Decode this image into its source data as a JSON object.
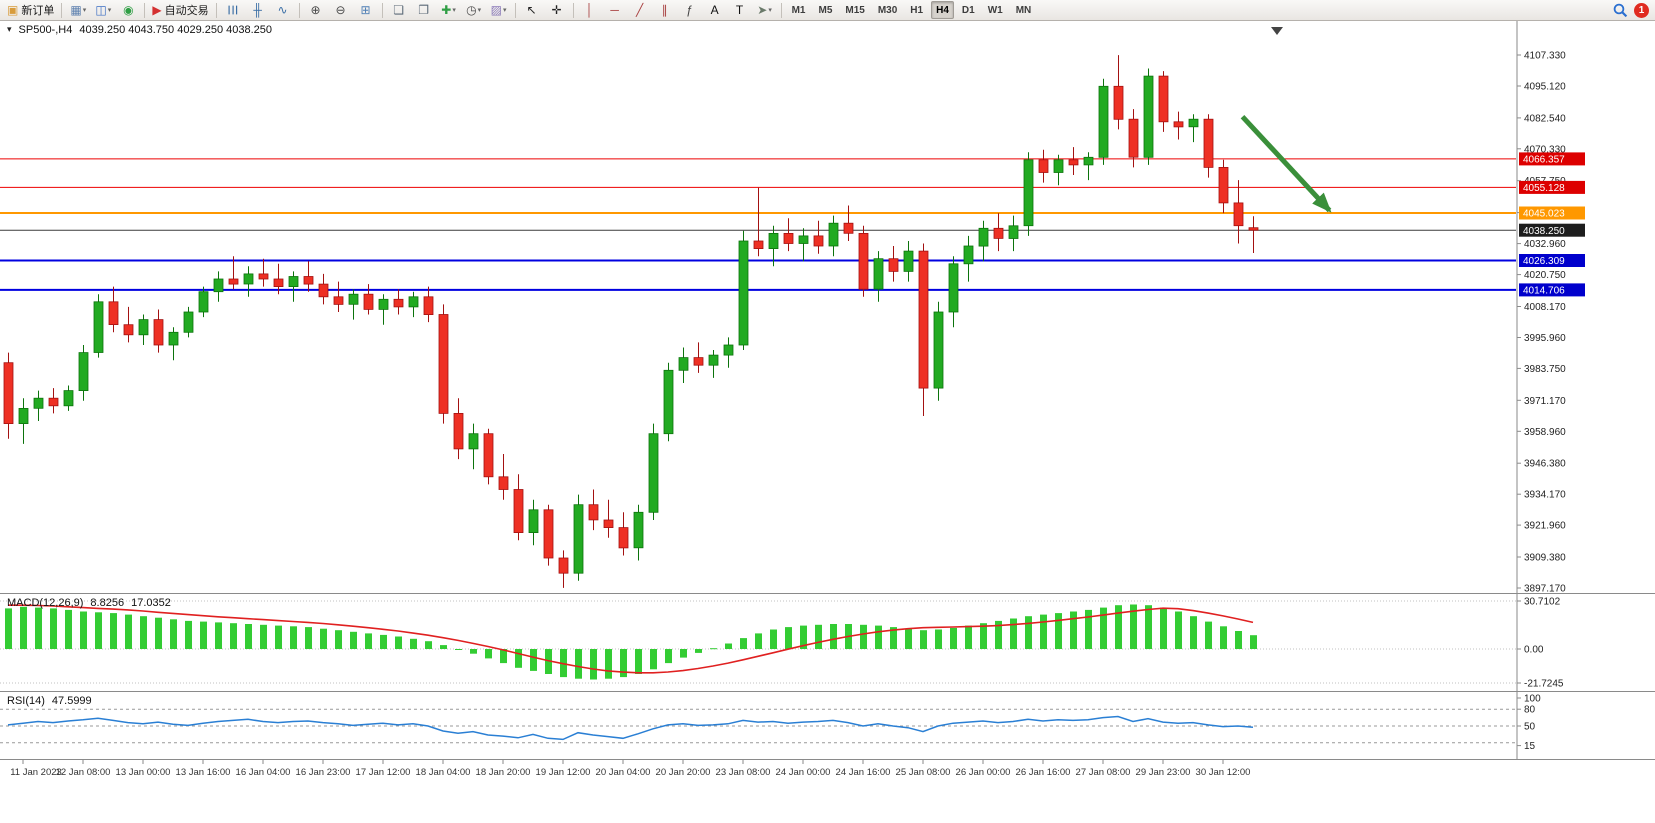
{
  "toolbar": {
    "groups": [
      {
        "name": "file",
        "items": [
          {
            "name": "new-order-button",
            "glyph": "▣",
            "glyph_color": "#d89c3c",
            "label": "新订单"
          }
        ]
      },
      {
        "name": "windows",
        "items": [
          {
            "name": "new-chart-button",
            "glyph": "▦",
            "glyph_color": "#5b7fae",
            "caret": true
          },
          {
            "name": "profiles-button",
            "glyph": "◫",
            "glyph_color": "#3c6fc4",
            "caret": true
          },
          {
            "name": "market-watch-button",
            "glyph": "◉",
            "glyph_color": "#2f9e44"
          }
        ]
      },
      {
        "name": "trading",
        "items": [
          {
            "name": "auto-trading-button",
            "glyph": "▶",
            "glyph_color": "#d43030",
            "label": "自动交易"
          }
        ]
      },
      {
        "name": "chart-type",
        "items": [
          {
            "name": "bar-chart-button",
            "glyph": "☰",
            "glyph_color": "#3a6ea5",
            "rotate": true
          },
          {
            "name": "candlestick-button",
            "glyph": "╫",
            "glyph_color": "#3a6ea5"
          },
          {
            "name": "line-chart-button",
            "glyph": "∿",
            "glyph_color": "#3a6ea5"
          }
        ]
      },
      {
        "name": "zoom",
        "items": [
          {
            "name": "zoom-in-button",
            "glyph": "⊕",
            "glyph_color": "#4a4a4a"
          },
          {
            "name": "zoom-out-button",
            "glyph": "⊖",
            "glyph_color": "#4a4a4a"
          },
          {
            "name": "tile-windows-button",
            "glyph": "⊞",
            "glyph_color": "#4f7fb5"
          }
        ]
      },
      {
        "name": "chart-tools",
        "items": [
          {
            "name": "cascade-windows-button",
            "glyph": "❏",
            "glyph_color": "#5c6a78"
          },
          {
            "name": "arrange-windows-button",
            "glyph": "❐",
            "glyph_color": "#5c6a78"
          },
          {
            "name": "indicators-button",
            "glyph": "✚",
            "glyph_color": "#2f9e44",
            "caret": true
          },
          {
            "name": "period-button",
            "glyph": "◷",
            "glyph_color": "#4a4a4a",
            "caret": true
          },
          {
            "name": "template-button",
            "glyph": "▨",
            "glyph_color": "#8a7ab8",
            "caret": true
          }
        ]
      },
      {
        "name": "cursor",
        "items": [
          {
            "name": "cursor-button",
            "glyph": "↖",
            "glyph_color": "#222222"
          },
          {
            "name": "crosshair-button",
            "glyph": "✛",
            "glyph_color": "#222222"
          }
        ]
      },
      {
        "name": "objects",
        "items": [
          {
            "name": "vertical-line-button",
            "glyph": "│",
            "glyph_color": "#a84040"
          },
          {
            "name": "horizontal-line-button",
            "glyph": "─",
            "glyph_color": "#a84040"
          },
          {
            "name": "trendline-button",
            "glyph": "╱",
            "glyph_color": "#a84040"
          },
          {
            "name": "channel-button",
            "glyph": "∥",
            "glyph_color": "#a84040"
          },
          {
            "name": "fibonacci-button",
            "glyph": "ƒ",
            "glyph_color": "#444444"
          },
          {
            "name": "text-button",
            "glyph": "A",
            "glyph_color": "#111111"
          },
          {
            "name": "label-button",
            "glyph": "T",
            "glyph_color": "#111111"
          },
          {
            "name": "arrows-button",
            "glyph": "➤",
            "glyph_color": "#6a7a6a",
            "caret": true
          }
        ]
      }
    ],
    "timeframes": [
      "M1",
      "M5",
      "M15",
      "M30",
      "H1",
      "H4",
      "D1",
      "W1",
      "MN"
    ],
    "active_timeframe": "H4",
    "notification_count": "1"
  },
  "chart": {
    "title_symbol": "SP500-,H4",
    "title_ohlc": "4039.250 4043.750 4029.250 4038.250"
  },
  "chart_data": {
    "type": "candlestick",
    "symbol": "SP500-",
    "timeframe": "H4",
    "colors": {
      "up": "#22aa22",
      "up_edge": "#0c730c",
      "down": "#ee3024",
      "down_edge": "#a31111"
    },
    "ohlc": [
      [
        3986,
        3990,
        3956,
        3962
      ],
      [
        3962,
        3972,
        3954,
        3968
      ],
      [
        3968,
        3975,
        3963,
        3972
      ],
      [
        3972,
        3976,
        3966,
        3969
      ],
      [
        3969,
        3977,
        3967,
        3975
      ],
      [
        3975,
        3993,
        3971,
        3990
      ],
      [
        3990,
        4013,
        3988,
        4010
      ],
      [
        4010,
        4016,
        3998,
        4001
      ],
      [
        4001,
        4008,
        3994,
        3997
      ],
      [
        3997,
        4005,
        3993,
        4003
      ],
      [
        4003,
        4007,
        3990,
        3993
      ],
      [
        3993,
        4000,
        3987,
        3998
      ],
      [
        3998,
        4008,
        3996,
        4006
      ],
      [
        4006,
        4016,
        4004,
        4014
      ],
      [
        4014,
        4022,
        4010,
        4019
      ],
      [
        4019,
        4028,
        4015,
        4017
      ],
      [
        4017,
        4024,
        4012,
        4021
      ],
      [
        4021,
        4027,
        4016,
        4019
      ],
      [
        4019,
        4025,
        4013,
        4016
      ],
      [
        4016,
        4022,
        4010,
        4020
      ],
      [
        4020,
        4026,
        4014,
        4017
      ],
      [
        4017,
        4021,
        4009,
        4012
      ],
      [
        4012,
        4018,
        4006,
        4009
      ],
      [
        4009,
        4015,
        4003,
        4013
      ],
      [
        4013,
        4017,
        4005,
        4007
      ],
      [
        4007,
        4013,
        4001,
        4011
      ],
      [
        4011,
        4015,
        4005,
        4008
      ],
      [
        4008,
        4014,
        4004,
        4012
      ],
      [
        4012,
        4016,
        4002,
        4005
      ],
      [
        4005,
        4009,
        3962,
        3966
      ],
      [
        3966,
        3972,
        3948,
        3952
      ],
      [
        3952,
        3962,
        3944,
        3958
      ],
      [
        3958,
        3960,
        3938,
        3941
      ],
      [
        3941,
        3950,
        3932,
        3936
      ],
      [
        3936,
        3942,
        3916,
        3919
      ],
      [
        3919,
        3932,
        3914,
        3928
      ],
      [
        3928,
        3930,
        3906,
        3909
      ],
      [
        3909,
        3912,
        3897.2,
        3903
      ],
      [
        3903,
        3934,
        3900,
        3930
      ],
      [
        3930,
        3936,
        3920,
        3924
      ],
      [
        3924,
        3932,
        3917,
        3921
      ],
      [
        3921,
        3927,
        3910,
        3913
      ],
      [
        3913,
        3930,
        3908,
        3927
      ],
      [
        3927,
        3962,
        3924,
        3958
      ],
      [
        3958,
        3986,
        3955,
        3983
      ],
      [
        3983,
        3992,
        3978,
        3988
      ],
      [
        3988,
        3994,
        3982,
        3985
      ],
      [
        3985,
        3991,
        3980,
        3989
      ],
      [
        3989,
        3996,
        3984,
        3993
      ],
      [
        3993,
        4038,
        3991,
        4034
      ],
      [
        4034,
        4055,
        4028,
        4031
      ],
      [
        4031,
        4040,
        4024,
        4037
      ],
      [
        4037,
        4043,
        4030,
        4033
      ],
      [
        4033,
        4039,
        4026,
        4036
      ],
      [
        4036,
        4042,
        4029,
        4032
      ],
      [
        4032,
        4044,
        4028,
        4041
      ],
      [
        4041,
        4048,
        4034,
        4037
      ],
      [
        4037,
        4040,
        4012,
        4015
      ],
      [
        4015,
        4030,
        4010,
        4027
      ],
      [
        4027,
        4032,
        4018,
        4022
      ],
      [
        4022,
        4034,
        4018,
        4030
      ],
      [
        4030,
        4033,
        3965,
        3976
      ],
      [
        3976,
        4010,
        3971,
        4006
      ],
      [
        4006,
        4028,
        4000,
        4025
      ],
      [
        4025,
        4036,
        4018,
        4032
      ],
      [
        4032,
        4042,
        4026,
        4039
      ],
      [
        4039,
        4045,
        4030,
        4035
      ],
      [
        4035,
        4044,
        4030,
        4040
      ],
      [
        4040,
        4069,
        4036,
        4066
      ],
      [
        4066,
        4070,
        4057,
        4061
      ],
      [
        4061,
        4068,
        4056,
        4066
      ],
      [
        4066,
        4071,
        4060,
        4064
      ],
      [
        4064,
        4069,
        4058,
        4067
      ],
      [
        4067,
        4098,
        4064,
        4095
      ],
      [
        4095,
        4107.3,
        4078,
        4082
      ],
      [
        4082,
        4086,
        4063,
        4067
      ],
      [
        4067,
        4102,
        4064,
        4099
      ],
      [
        4099,
        4101,
        4077,
        4081
      ],
      [
        4081,
        4085,
        4074,
        4079
      ],
      [
        4079,
        4084,
        4073,
        4082
      ],
      [
        4082,
        4084,
        4059,
        4063
      ],
      [
        4063,
        4066,
        4045,
        4049
      ],
      [
        4049,
        4058,
        4033,
        4040
      ],
      [
        4039.25,
        4043.75,
        4029.25,
        4038.25
      ]
    ],
    "time_labels": [
      [
        1,
        "11 Jan 2023"
      ],
      [
        5,
        "12 Jan 08:00"
      ],
      [
        9,
        "13 Jan 00:00"
      ],
      [
        13,
        "13 Jan 16:00"
      ],
      [
        17,
        "16 Jan 04:00"
      ],
      [
        21,
        "16 Jan 23:00"
      ],
      [
        25,
        "17 Jan 12:00"
      ],
      [
        29,
        "18 Jan 04:00"
      ],
      [
        33,
        "18 Jan 20:00"
      ],
      [
        37,
        "19 Jan 12:00"
      ],
      [
        41,
        "20 Jan 04:00"
      ],
      [
        45,
        "20 Jan 20:00"
      ],
      [
        49,
        "23 Jan 08:00"
      ],
      [
        53,
        "24 Jan 00:00"
      ],
      [
        57,
        "24 Jan 16:00"
      ],
      [
        61,
        "25 Jan 08:00"
      ],
      [
        65,
        "26 Jan 00:00"
      ],
      [
        69,
        "26 Jan 16:00"
      ],
      [
        73,
        "27 Jan 08:00"
      ],
      [
        77,
        "29 Jan 23:00"
      ],
      [
        81,
        "30 Jan 12:00"
      ]
    ],
    "y_axis_labels": [
      "4107.330",
      "4095.120",
      "4082.540",
      "4070.330",
      "4057.750",
      "4045.170",
      "4032.960",
      "4020.750",
      "4008.170",
      "3995.960",
      "3983.750",
      "3971.170",
      "3958.960",
      "3946.380",
      "3934.170",
      "3921.960",
      "3909.380",
      "3897.170"
    ],
    "hlines": [
      {
        "price": 4066.357,
        "label": "4066.357",
        "color": "#ee0000",
        "width": 1,
        "tag": "#dd0000"
      },
      {
        "price": 4055.128,
        "label": "4055.128",
        "color": "#ee0000",
        "width": 1,
        "tag": "#dd0000"
      },
      {
        "price": 4045.023,
        "label": "4045.023",
        "color": "#ff9800",
        "width": 2,
        "tag": "#ff9800"
      },
      {
        "price": 4038.25,
        "label": "4038.250",
        "color": "#3c3c3c",
        "width": 1,
        "tag": "#1d1d1d"
      },
      {
        "price": 4026.309,
        "label": "4026.309",
        "color": "#0000e0",
        "width": 2,
        "tag": "#0000cc"
      },
      {
        "price": 4014.706,
        "label": "4014.706",
        "color": "#0000e0",
        "width": 2,
        "tag": "#0000cc"
      }
    ],
    "current_price": "4038.250",
    "arrow": {
      "x1_bar": 82.3,
      "y1_price": 4083,
      "x2_bar": 88.1,
      "y2_price": 4046,
      "color": "#3a8f3a"
    },
    "macd": {
      "label": "MACD(12,26,9)",
      "value_main": "8.8256",
      "value_signal": "17.0352",
      "axis_labels": [
        "30.7102",
        "0.00",
        "-21.7245"
      ],
      "histogram": [
        26,
        27,
        26.5,
        26,
        25,
        24,
        23.5,
        23,
        22,
        21,
        20,
        19,
        18,
        17.5,
        17,
        16.5,
        16,
        15.5,
        15,
        14.5,
        14,
        13,
        12,
        11,
        10,
        9,
        8,
        6.5,
        5,
        2.5,
        0,
        -3,
        -6,
        -9,
        -12,
        -14,
        -16,
        -18,
        -19,
        -19.5,
        -19,
        -18,
        -16,
        -13,
        -9,
        -5.5,
        -2.5,
        0.5,
        3.5,
        7,
        10,
        12.5,
        14,
        15,
        15.5,
        16,
        16,
        15.5,
        15,
        14,
        13,
        12,
        12.5,
        13.5,
        15,
        16.5,
        18,
        19.5,
        21,
        22,
        23,
        24,
        25,
        26.5,
        28,
        28.5,
        28,
        26.5,
        24,
        21,
        17.5,
        14.5,
        11.5,
        8.83
      ],
      "signal": [
        28,
        28,
        27.8,
        27.5,
        27,
        26.5,
        26,
        25.5,
        25,
        24.3,
        23.5,
        22.8,
        22,
        21.3,
        20.6,
        20,
        19.4,
        18.8,
        18.2,
        17.6,
        17,
        16.3,
        15.5,
        14.6,
        13.6,
        12.6,
        11.5,
        10.2,
        8.8,
        7.2,
        5.5,
        3.6,
        1.6,
        -0.6,
        -2.9,
        -5.2,
        -7.4,
        -9.4,
        -11.2,
        -12.8,
        -14,
        -14.8,
        -15.2,
        -15.2,
        -14.7,
        -13.8,
        -12.5,
        -10.9,
        -9,
        -6.9,
        -4.7,
        -2.4,
        -0.1,
        2.1,
        4.2,
        6.2,
        8,
        9.6,
        11,
        12.1,
        13,
        13.6,
        13.9,
        14.1,
        14.3,
        14.6,
        15,
        15.6,
        16.4,
        17.3,
        18.3,
        19.4,
        20.5,
        21.7,
        23,
        24.2,
        25.3,
        26.1,
        25.8,
        24.6,
        23,
        21.2,
        19.2,
        17.04
      ],
      "histogram_color": "#33cc33",
      "signal_color": "#e02020"
    },
    "rsi": {
      "label": "RSI(14)",
      "value": "47.5999",
      "axis_labels": [
        "100",
        "80",
        "50",
        "15"
      ],
      "levels": [
        80,
        50,
        20
      ],
      "line_color": "#2a7fd4",
      "series": [
        52,
        55,
        58,
        56,
        59,
        61,
        64,
        60,
        56,
        54,
        57,
        53,
        51,
        55,
        58,
        60,
        62,
        58,
        56,
        58,
        59,
        56,
        54,
        51,
        53,
        55,
        52,
        54,
        50,
        41,
        37,
        40,
        34,
        32,
        29,
        35,
        28,
        26,
        38,
        34,
        31,
        28,
        36,
        45,
        52,
        54,
        51,
        52,
        54,
        60,
        57,
        58,
        55,
        57,
        58,
        60,
        56,
        50,
        54,
        50,
        47,
        40,
        50,
        55,
        57,
        59,
        56,
        58,
        62,
        59,
        61,
        60,
        61,
        65,
        67,
        58,
        63,
        57,
        55,
        56,
        52,
        49,
        50,
        47.6
      ]
    }
  }
}
